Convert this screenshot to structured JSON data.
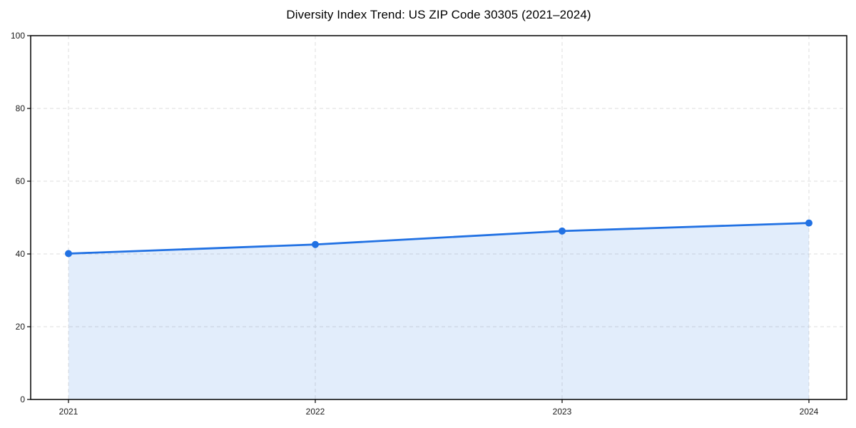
{
  "chart_data": {
    "type": "area",
    "title": "Diversity Index Trend: US ZIP Code 30305 (2021–2024)",
    "x": [
      "2021",
      "2022",
      "2023",
      "2024"
    ],
    "series": [
      {
        "name": "Diversity Index",
        "values": [
          40.1,
          42.6,
          46.3,
          48.5
        ]
      }
    ],
    "xlabel": "",
    "ylabel": "",
    "ylim": [
      0,
      100
    ],
    "yticks": [
      0,
      20,
      40,
      60,
      80,
      100
    ],
    "grid": true,
    "grid_style": "dashed",
    "legend": false,
    "marker": "circle",
    "colors": {
      "line": "#2171e3",
      "marker": "#2171e3",
      "fill": "rgba(33,113,227,0.13)",
      "grid": "#dedede",
      "spine": "#000000",
      "tick_text": "#1a1a1a",
      "background": "#ffffff"
    }
  }
}
